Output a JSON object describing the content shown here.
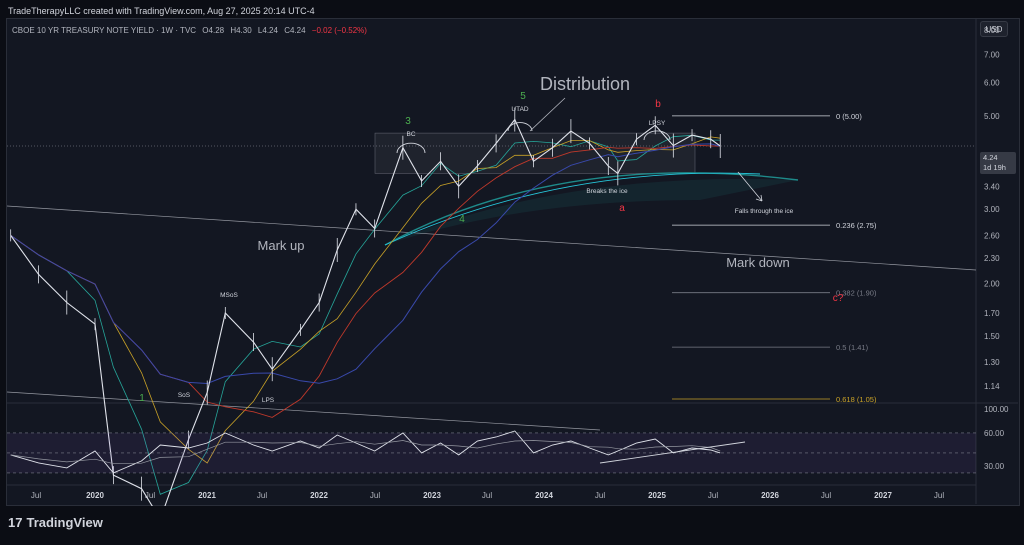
{
  "header": {
    "credit": "TradeTherapyLLC created with TradingView.com, Aug 27, 2025 20:14 UTC-4",
    "symbol": "CBOE 10 YR TREASURY NOTE YIELD · 1W · TVC",
    "open": "O4.28",
    "high": "H4.30",
    "low": "L4.24",
    "close": "C4.24",
    "change": "−0.02 (−0.52%)",
    "currency_button": "USD"
  },
  "price_tag": {
    "price": "4.24",
    "countdown": "1d 19h"
  },
  "footer": {
    "brand": "TradingView",
    "logo_icon": "tradingview-logo-icon"
  },
  "colors": {
    "background": "#131722",
    "price": "#d1d4dc",
    "up": "#22ab94",
    "down": "#f23645",
    "green_label": "#4caf50",
    "red_label": "#f23645",
    "fib_gray": "#787b86",
    "fib_orange": "#c9a227"
  },
  "chart_data": {
    "type": "candlestick",
    "scale": "log",
    "title": "CBOE 10 YR TREASURY NOTE YIELD · 1W · TVC",
    "y_ticks": [
      "8.00",
      "7.00",
      "6.00",
      "5.00",
      "4.24",
      "3.40",
      "3.00",
      "2.60",
      "2.30",
      "2.00",
      "1.70",
      "1.50",
      "1.30",
      "1.14"
    ],
    "x_ticks": [
      "Jul",
      "2020",
      "Jul",
      "2021",
      "Jul",
      "2022",
      "Jul",
      "2023",
      "Jul",
      "2024",
      "Jul",
      "2025",
      "Jul",
      "2026",
      "Jul",
      "2027",
      "Jul"
    ],
    "series": [
      {
        "name": "",
        "x": [
          "2019-04",
          "2019-07",
          "2019-10",
          "2020-01",
          "2020-03",
          "2020-06",
          "2020-08",
          "2020-11",
          "2021-01",
          "2021-03",
          "2021-06",
          "2021-08",
          "2021-11",
          "2022-01",
          "2022-03",
          "2022-05",
          "2022-07",
          "2022-10",
          "2022-12",
          "2023-02",
          "2023-04",
          "2023-06",
          "2023-08",
          "2023-10",
          "2023-12",
          "2024-02",
          "2024-04",
          "2024-06",
          "2024-08",
          "2024-09",
          "2024-11",
          "2025-01",
          "2025-03",
          "2025-05",
          "2025-07",
          "2025-08"
        ],
        "values": [
          2.6,
          2.1,
          1.8,
          1.6,
          0.7,
          0.65,
          0.55,
          0.85,
          1.1,
          1.7,
          1.45,
          1.25,
          1.55,
          1.8,
          2.4,
          3.0,
          2.7,
          4.2,
          3.5,
          3.9,
          3.4,
          3.8,
          4.3,
          4.9,
          3.9,
          4.2,
          4.6,
          4.3,
          3.8,
          3.65,
          4.4,
          4.75,
          4.25,
          4.5,
          4.4,
          4.24
        ]
      }
    ],
    "fib_levels": [
      {
        "label": "0 (5.00)"
      },
      {
        "label": "0.236 (2.75)"
      },
      {
        "label": "0.382 (1.90)"
      },
      {
        "label": "0.5 (1.41)"
      },
      {
        "label": "0.618 (1.05)"
      }
    ],
    "annotations": {
      "distribution": "Distribution",
      "mark_up": "Mark up",
      "mark_down": "Mark down",
      "utad": "UTAD",
      "bc": "BC",
      "lpsy": "LPSY",
      "msos": "MSoS",
      "sos": "SoS",
      "lps": "LPS",
      "breaks_ice": "Breaks the ice",
      "falls_ice": "Falls through the ice",
      "wave_1": "1",
      "wave_3": "3",
      "wave_4": "4",
      "wave_5": "5",
      "wave_a": "a",
      "wave_b": "b",
      "wave_c": "c?"
    },
    "rsi": {
      "y_ticks": [
        "100.00",
        "60.00",
        "30.00"
      ],
      "values": [
        48,
        40,
        35,
        52,
        30,
        42,
        58,
        55,
        60,
        70,
        58,
        52,
        62,
        55,
        68,
        60,
        52,
        70,
        50,
        60,
        48,
        62,
        66,
        72,
        50,
        58,
        62,
        55,
        48,
        52,
        60,
        64,
        50,
        55,
        53,
        50
      ]
    }
  }
}
